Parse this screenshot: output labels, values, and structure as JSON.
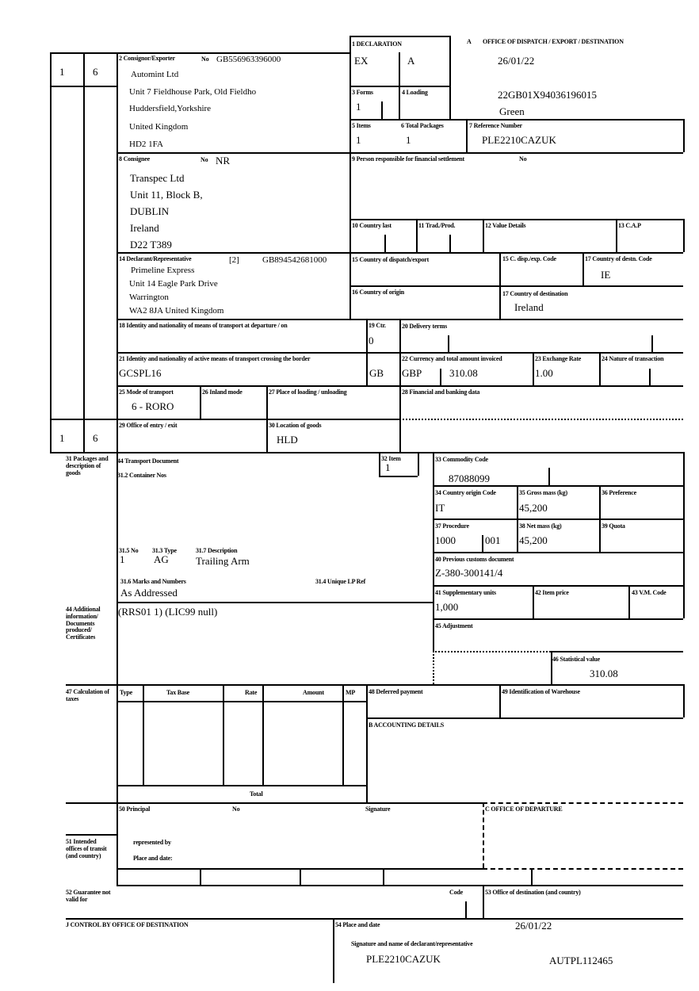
{
  "copy_markers": {
    "top_left": "1",
    "top_right": "6",
    "bottom_left": "1",
    "bottom_right": "6"
  },
  "header": {
    "declaration_label": "1 DECLARATION",
    "declaration_1": "EX",
    "declaration_2": "A",
    "office_letter": "A",
    "office_label": "OFFICE OF DISPATCH / EXPORT / DESTINATION",
    "date": "26/01/22",
    "mrn": "22GB01X94036196015",
    "route": "Green"
  },
  "consignor": {
    "label": "2 Consignor/Exporter",
    "no_label": "No",
    "no": "GB556963396000",
    "lines": [
      "Automint Ltd",
      "Unit 7 Fieldhouse Park, Old Fieldho",
      "Huddersfield,Yorkshire",
      "United Kingdom",
      "HD2 1FA"
    ]
  },
  "forms": {
    "label": "3 Forms",
    "value": "1"
  },
  "loading": {
    "label": "4 Loading"
  },
  "items": {
    "label": "5 Items",
    "value": "1"
  },
  "total_packages": {
    "label": "6 Total Packages",
    "value": "1"
  },
  "reference": {
    "label": "7 Reference Number",
    "value": "PLE2210CAZUK"
  },
  "consignee": {
    "label": "8 Consignee",
    "no_label": "No",
    "no": "NR",
    "lines": [
      "Transpec Ltd",
      "Unit 11, Block B,",
      "DUBLIN",
      "Ireland",
      "D22 T389"
    ]
  },
  "financial": {
    "label": "9 Person responsible for financial settlement",
    "no_label": "No"
  },
  "box10": "10 Country last",
  "box11": "11 Trad./Prod.",
  "box12": "12 Value Details",
  "box13": "13 C.A.P",
  "declarant": {
    "label": "14 Declarant/Representative",
    "code": "[2]",
    "no": "GB894542681000",
    "lines": [
      "Primeline Express",
      "Unit 14 Eagle Park Drive",
      "Warrington",
      "WA2 8JA United Kingdom"
    ]
  },
  "box15": "15 Country of dispatch/export",
  "box15a": "15 C. disp./exp. Code",
  "box17a": {
    "label": "17 Country of destn. Code",
    "value": "IE"
  },
  "box16": "16 Country of origin",
  "box17": {
    "label": "17 Country of destination",
    "value": "Ireland"
  },
  "box18": "18 Identity and nationality of means of transport at departure / on",
  "box19": {
    "label": "19 Ctr.",
    "value": "0"
  },
  "box20": "20 Delivery terms",
  "box21": {
    "label": "21 Identity and nationality of active means of transport crossing the border",
    "value": "GCSPL16",
    "nationality": "GB"
  },
  "box22": {
    "label": "22 Currency and total amount invoiced",
    "currency": "GBP",
    "amount": "310.08"
  },
  "box23": {
    "label": "23 Exchange Rate",
    "value": "1.00"
  },
  "box24": "24 Nature of transaction",
  "box25": {
    "label": "25 Mode of transport",
    "value": "6 - RORO"
  },
  "box26": "26 Inland mode",
  "box27": "27 Place of loading / unloading",
  "box28": "28 Financial and banking data",
  "box29": "29 Office of entry / exit",
  "box30": {
    "label": "30 Location of goods",
    "value": "HLD"
  },
  "box31": {
    "label": "31 Packages and description of goods",
    "transport_doc": "44 Transport Document",
    "container": "31.2 Container Nos",
    "no_label": "31.5 No",
    "no": "1",
    "type_label": "31.3 Type",
    "type": "AG",
    "desc_label": "31.7 Description",
    "desc": "Trailing Arm",
    "marks_label": "31.6 Marks and Numbers",
    "marks": "As Addressed",
    "lp_label": "31.4 Unique LP Ref"
  },
  "box32": {
    "label": "32 Item",
    "value": "1"
  },
  "box33": {
    "label": "33 Commodity Code",
    "value": "87088099"
  },
  "box34": {
    "label": "34 Country origin Code",
    "value": "IT"
  },
  "box35": {
    "label": "35 Gross mass (kg)",
    "value": "45,200"
  },
  "box36": "36 Preference",
  "box37": {
    "label": "37 Procedure",
    "value": "1000",
    "value2": "001"
  },
  "box38": {
    "label": "38 Net mass (kg)",
    "value": "45,200"
  },
  "box39": "39 Quota",
  "box40": {
    "label": "40 Previous customs document",
    "value": "Z-380-300141/4"
  },
  "box41": {
    "label": "41 Supplementary units",
    "value": "1,000"
  },
  "box42": "42 Item price",
  "box43": "43 V.M. Code",
  "box44": {
    "label": "44 Additional information/ Documents produced/ Certificates",
    "value": "(RRS01 1) (LIC99 null)"
  },
  "box45": "45 Adjustment",
  "box46": {
    "label": "46 Statistical value",
    "value": "310.08"
  },
  "box47": {
    "label": "47 Calculation of taxes",
    "columns": [
      "Type",
      "Tax Base",
      "Rate",
      "Amount",
      "MP"
    ],
    "total": "Total"
  },
  "box48": "48 Deferred payment",
  "box49": "49 Identification of Warehouse",
  "accounting": "B ACCOUNTING DETAILS",
  "box50": {
    "label": "50 Principal",
    "no_label": "No",
    "signature": "Signature",
    "represented": "represented by",
    "place": "Place and date:"
  },
  "office_departure": "C OFFICE OF DEPARTURE",
  "box51": "51 Intended offices of transit (and country)",
  "box52": {
    "label": "52 Guarantee not valid for",
    "code": "Code"
  },
  "box53": "53 Office of destination (and country)",
  "control": "J CONTROL BY OFFICE OF DESTINATION",
  "box54": {
    "label": "54 Place and date",
    "date": "26/01/22",
    "sig_label": "Signature and name of declarant/representative",
    "name": "PLE2210CAZUK",
    "ref": "AUTPL112465"
  }
}
